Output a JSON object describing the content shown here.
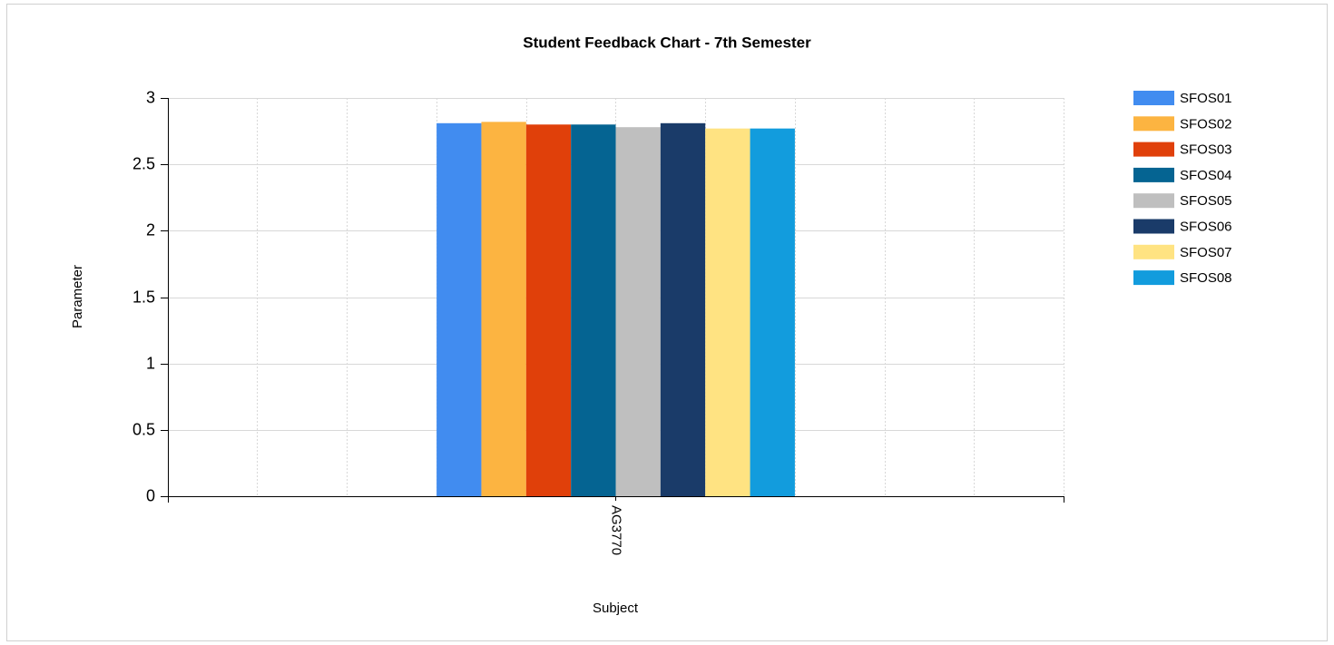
{
  "chart_data": {
    "type": "bar",
    "title": "Student Feedback Chart - 7th Semester",
    "x_label": "Subject",
    "y_label": "Parameter",
    "categories": [
      "AG3770"
    ],
    "series": [
      {
        "name": "SFOS01",
        "color": "#418cf0",
        "values": [
          2.81
        ]
      },
      {
        "name": "SFOS02",
        "color": "#fcb441",
        "values": [
          2.82
        ]
      },
      {
        "name": "SFOS03",
        "color": "#e0400a",
        "values": [
          2.8
        ]
      },
      {
        "name": "SFOS04",
        "color": "#056492",
        "values": [
          2.8
        ]
      },
      {
        "name": "SFOS05",
        "color": "#bfbfbf",
        "values": [
          2.78
        ]
      },
      {
        "name": "SFOS06",
        "color": "#1a3b69",
        "values": [
          2.81
        ]
      },
      {
        "name": "SFOS07",
        "color": "#ffe382",
        "values": [
          2.77
        ]
      },
      {
        "name": "SFOS08",
        "color": "#129cdd",
        "values": [
          2.77
        ]
      }
    ],
    "ylim": [
      0,
      3
    ],
    "yticks": [
      0,
      0.5,
      1,
      1.5,
      2,
      2.5,
      3
    ],
    "grid": true,
    "legend": "right"
  }
}
